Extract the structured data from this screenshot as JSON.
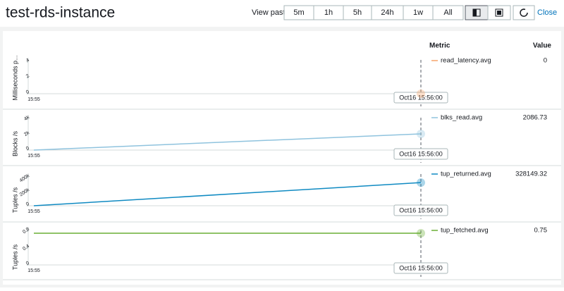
{
  "header": {
    "title": "test-rds-instance",
    "view_past": "View past",
    "ranges": [
      "5m",
      "1h",
      "5h",
      "24h",
      "1w",
      "All"
    ],
    "close": "Close"
  },
  "legend_headers": {
    "metric": "Metric",
    "value": "Value"
  },
  "chart_data": [
    {
      "type": "line",
      "ylabel": "Milliseconds p...",
      "x": [
        "15:55",
        "Oct16 15:56:00"
      ],
      "ylim": [
        0,
        4
      ],
      "yticks": [
        0,
        2,
        4
      ],
      "series": [
        {
          "name": "read_latency.avg",
          "color": "#f5a46a",
          "values": [
            null,
            0
          ]
        }
      ]
    },
    {
      "type": "line",
      "ylabel": "Blocks /s",
      "x": [
        "15:55",
        "Oct16 15:56:00"
      ],
      "ylim": [
        0,
        4000
      ],
      "yticks": [
        0,
        {
          "value": 2000,
          "label": "2k"
        },
        {
          "value": 4000,
          "label": "4k"
        }
      ],
      "series": [
        {
          "name": "blks_read.avg",
          "color": "#8fc3de",
          "values": [
            0,
            2086.73
          ]
        }
      ]
    },
    {
      "type": "line",
      "ylabel": "Tuples /s",
      "x": [
        "15:55",
        "Oct16 15:56:00"
      ],
      "ylim": [
        0,
        400000
      ],
      "yticks": [
        0,
        {
          "value": 200000,
          "label": "200k"
        },
        {
          "value": 400000,
          "label": "400k"
        }
      ],
      "series": [
        {
          "name": "tup_returned.avg",
          "color": "#0f8ac2",
          "values": [
            0,
            328149.32
          ]
        }
      ]
    },
    {
      "type": "line",
      "ylabel": "Tuples /s",
      "x": [
        "15:55",
        "Oct16 15:56:00"
      ],
      "ylim": [
        0,
        0.8
      ],
      "yticks": [
        0,
        0.4,
        0.8
      ],
      "series": [
        {
          "name": "tup_fetched.avg",
          "color": "#6aaf35",
          "values": [
            0.75,
            0.75
          ]
        }
      ]
    }
  ]
}
